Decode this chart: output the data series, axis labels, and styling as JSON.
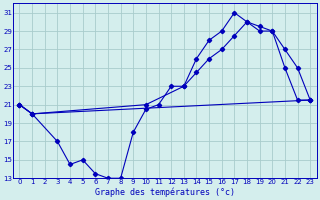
{
  "title": "Graphe des températures (°c)",
  "bg_color": "#d4eeed",
  "grid_color": "#a8cccc",
  "line_color": "#0000bb",
  "xlim": [
    -0.5,
    23.5
  ],
  "ylim": [
    13,
    32
  ],
  "yticks": [
    13,
    15,
    17,
    19,
    21,
    23,
    25,
    27,
    29,
    31
  ],
  "xticks": [
    0,
    1,
    2,
    3,
    4,
    5,
    6,
    7,
    8,
    9,
    10,
    11,
    12,
    13,
    14,
    15,
    16,
    17,
    18,
    19,
    20,
    21,
    22,
    23
  ],
  "line1_x": [
    0,
    1,
    3,
    4,
    5,
    6,
    7,
    8,
    9,
    10,
    11,
    12,
    13,
    14,
    15,
    16,
    17,
    18,
    19,
    20,
    21,
    22,
    23
  ],
  "line1_y": [
    21,
    20,
    17,
    14.5,
    15,
    13.5,
    13,
    13,
    18,
    20.5,
    21,
    23,
    23,
    26,
    28,
    29,
    31,
    30,
    29.5,
    29,
    27,
    25,
    21.5
  ],
  "line2_x": [
    0,
    1,
    10,
    13,
    14,
    15,
    16,
    17,
    18,
    19,
    20,
    21,
    22,
    23
  ],
  "line2_y": [
    21,
    20,
    21,
    23,
    24.5,
    26,
    27,
    28.5,
    30,
    29,
    29,
    25,
    21.5,
    21.5
  ],
  "line3_x": [
    0,
    1,
    23
  ],
  "line3_y": [
    21,
    20,
    21.5
  ]
}
